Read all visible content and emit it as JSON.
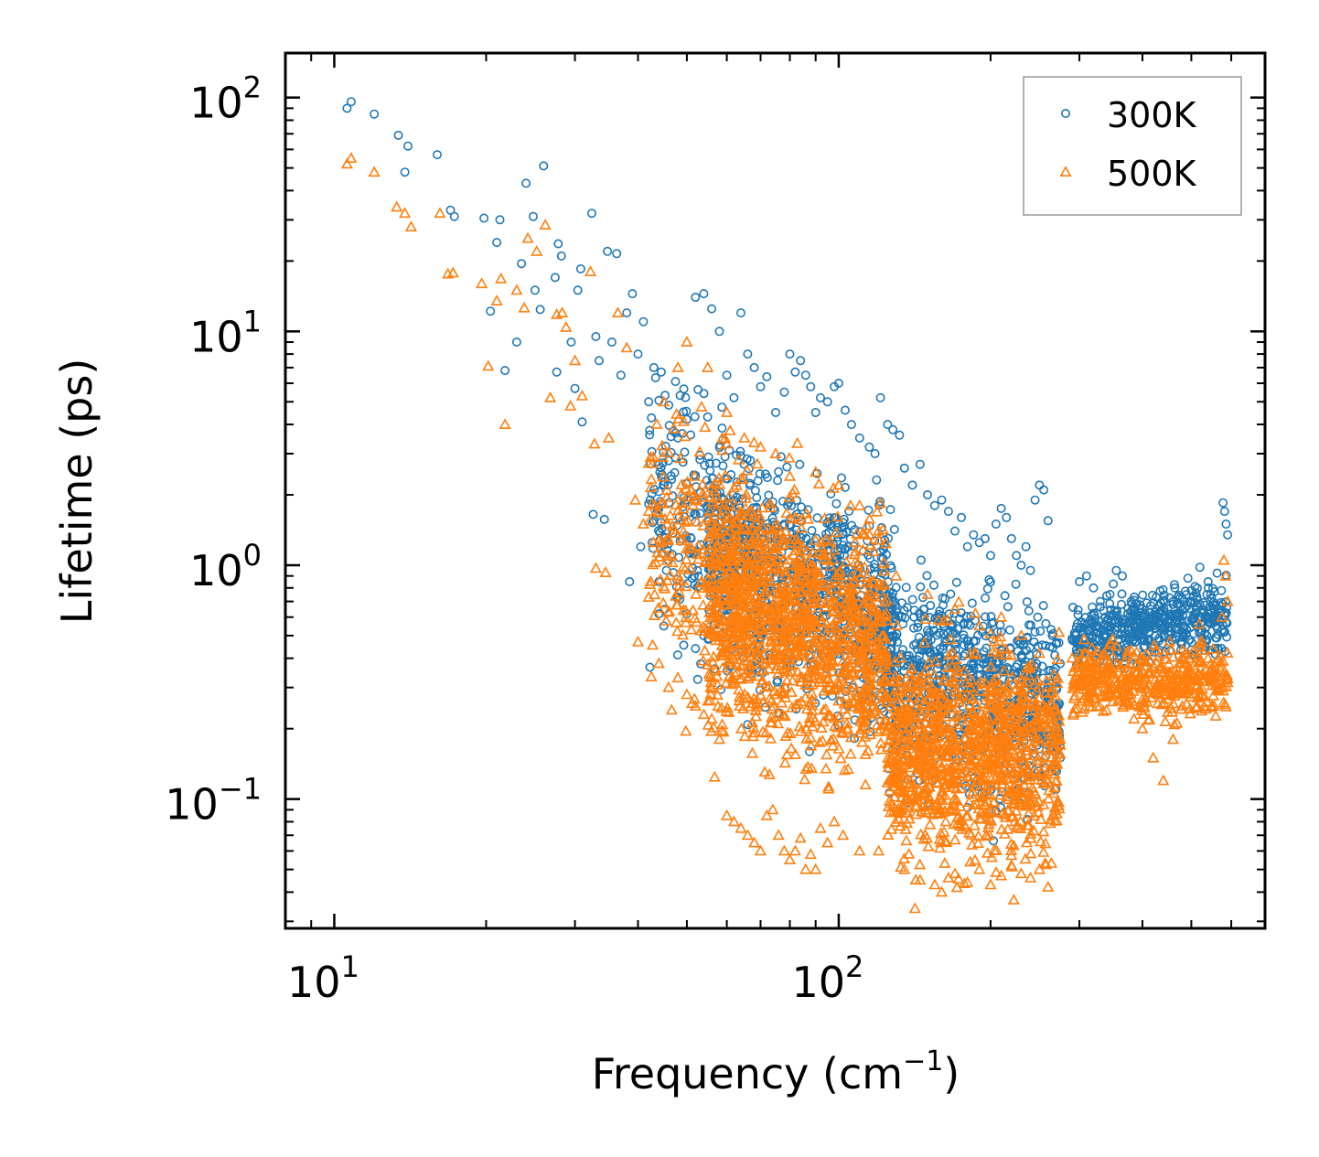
{
  "chart_data": {
    "type": "scatter",
    "xscale": "log",
    "yscale": "log",
    "xlabel_main": "Frequency (cm",
    "xlabel_sup": "−1",
    "xlabel_close": ")",
    "ylabel": "Lifetime (ps)",
    "xlim": [
      8,
      700
    ],
    "ylim": [
      0.028,
      155
    ],
    "x_ticks": [
      {
        "value": 10,
        "base": "10",
        "exp": "1"
      },
      {
        "value": 100,
        "base": "10",
        "exp": "2"
      }
    ],
    "y_ticks": [
      {
        "value": 0.1,
        "base": "10",
        "exp": "−1"
      },
      {
        "value": 1,
        "base": "10",
        "exp": "0"
      },
      {
        "value": 10,
        "base": "10",
        "exp": "1"
      },
      {
        "value": 100,
        "base": "10",
        "exp": "2"
      }
    ],
    "legend_position": "top-right",
    "series": [
      {
        "name": "300K",
        "marker": "circle",
        "color": "#1f77b4",
        "points": [
          [
            10.6,
            90
          ],
          [
            10.8,
            96
          ],
          [
            12,
            85
          ],
          [
            13.4,
            69
          ],
          [
            13.8,
            48
          ],
          [
            14,
            62
          ],
          [
            16,
            57
          ],
          [
            17,
            33
          ],
          [
            17.3,
            31
          ],
          [
            19.8,
            30.5
          ],
          [
            20.4,
            12.2
          ],
          [
            21,
            24
          ],
          [
            21.3,
            30
          ],
          [
            21.8,
            6.8
          ],
          [
            23,
            9
          ],
          [
            23.5,
            19.5
          ],
          [
            24,
            43
          ],
          [
            24.8,
            31
          ],
          [
            25,
            15
          ],
          [
            25.6,
            12.4
          ],
          [
            26,
            51
          ],
          [
            27.4,
            17
          ],
          [
            27.6,
            6.7
          ],
          [
            27.8,
            23.7
          ],
          [
            28.2,
            21
          ],
          [
            29.5,
            9
          ],
          [
            30,
            5.7
          ],
          [
            30.4,
            15
          ],
          [
            30.8,
            18.5
          ],
          [
            31,
            4.1
          ],
          [
            32.4,
            32
          ],
          [
            32.6,
            1.65
          ],
          [
            33,
            9.5
          ],
          [
            34.3,
            1.57
          ],
          [
            34.8,
            22
          ],
          [
            36.3,
            21.5
          ],
          [
            33.5,
            7.5
          ],
          [
            35.5,
            9
          ],
          [
            37,
            6.5
          ],
          [
            38,
            12
          ],
          [
            39,
            14.5
          ],
          [
            40,
            8
          ],
          [
            41,
            11
          ],
          [
            42,
            5
          ],
          [
            43,
            7
          ],
          [
            38.5,
            0.85
          ],
          [
            40.5,
            1.2
          ],
          [
            44,
            0.62
          ],
          [
            45,
            0.55
          ],
          [
            46,
            1.05
          ],
          [
            47,
            0.93
          ],
          [
            48,
            0.73
          ],
          [
            50,
            0.62
          ],
          [
            52,
            0.44
          ],
          [
            54,
            0.5
          ],
          [
            46,
            2.8
          ],
          [
            48,
            3.5
          ],
          [
            50,
            4.2
          ],
          [
            52,
            14
          ],
          [
            54,
            14.5
          ],
          [
            56,
            12.5
          ],
          [
            58,
            10
          ],
          [
            60,
            6.5
          ],
          [
            62,
            5.2
          ],
          [
            64,
            12
          ],
          [
            66,
            8
          ],
          [
            68,
            7
          ],
          [
            70,
            5.8
          ],
          [
            72,
            6.4
          ],
          [
            75,
            4.5
          ],
          [
            78,
            5.5
          ],
          [
            80,
            8
          ],
          [
            82,
            6.7
          ],
          [
            84,
            7.5
          ],
          [
            86,
            6.5
          ],
          [
            88,
            5.8
          ],
          [
            90,
            4.5
          ],
          [
            92,
            5.2
          ],
          [
            95,
            5
          ],
          [
            98,
            5.8
          ],
          [
            100,
            6
          ],
          [
            103,
            4.6
          ],
          [
            106,
            4
          ],
          [
            110,
            3.5
          ],
          [
            115,
            3.2
          ],
          [
            118,
            3
          ],
          [
            121,
            5.2
          ],
          [
            125,
            4
          ],
          [
            128,
            3.8
          ],
          [
            132,
            3.6
          ],
          [
            135,
            2.6
          ],
          [
            140,
            2.2
          ],
          [
            145,
            2.7
          ],
          [
            150,
            2
          ],
          [
            155,
            1.8
          ],
          [
            160,
            1.9
          ],
          [
            165,
            1.7
          ],
          [
            170,
            1.4
          ],
          [
            175,
            1.6
          ],
          [
            180,
            1.2
          ],
          [
            185,
            1.35
          ],
          [
            190,
            1.25
          ],
          [
            195,
            1.3
          ],
          [
            200,
            1.1
          ],
          [
            205,
            1.5
          ],
          [
            210,
            1.75
          ],
          [
            215,
            1.6
          ],
          [
            220,
            1.3
          ],
          [
            225,
            1.1
          ],
          [
            230,
            1
          ],
          [
            235,
            1.2
          ],
          [
            240,
            0.95
          ],
          [
            245,
            1.9
          ],
          [
            250,
            2.2
          ],
          [
            255,
            2.1
          ],
          [
            260,
            1.55
          ],
          [
            265,
            0.5
          ],
          [
            270,
            0.3
          ],
          [
            275,
            0.15
          ],
          [
            300,
            0.85
          ],
          [
            310,
            0.9
          ],
          [
            320,
            0.8
          ],
          [
            330,
            0.7
          ],
          [
            345,
            0.75
          ],
          [
            355,
            0.95
          ],
          [
            365,
            0.9
          ],
          [
            380,
            0.7
          ],
          [
            390,
            0.5
          ],
          [
            405,
            0.4
          ],
          [
            420,
            0.55
          ],
          [
            440,
            0.6
          ],
          [
            460,
            0.68
          ],
          [
            480,
            0.72
          ],
          [
            500,
            0.78
          ],
          [
            520,
            0.98
          ],
          [
            540,
            0.85
          ],
          [
            560,
            0.55
          ],
          [
            578,
            1.85
          ],
          [
            582,
            1.7
          ],
          [
            586,
            1.5
          ],
          [
            590,
            1.35
          ]
        ]
      },
      {
        "name": "500K",
        "marker": "triangle",
        "color": "#ff7f0e",
        "points": [
          [
            10.6,
            52
          ],
          [
            10.8,
            55
          ],
          [
            12,
            48
          ],
          [
            13.3,
            34
          ],
          [
            13.8,
            32
          ],
          [
            14.2,
            28
          ],
          [
            16.2,
            32
          ],
          [
            16.8,
            17.6
          ],
          [
            17.2,
            17.8
          ],
          [
            19.6,
            16
          ],
          [
            20.2,
            7.1
          ],
          [
            21,
            13.5
          ],
          [
            21.4,
            16.8
          ],
          [
            21.8,
            4
          ],
          [
            23,
            15
          ],
          [
            23.8,
            12.6
          ],
          [
            24.2,
            25
          ],
          [
            25.2,
            22
          ],
          [
            26.2,
            28.5
          ],
          [
            26.8,
            5.2
          ],
          [
            27.6,
            11.8
          ],
          [
            28.3,
            12
          ],
          [
            28.8,
            10.4
          ],
          [
            29.4,
            4.8
          ],
          [
            30,
            7.5
          ],
          [
            31,
            5.3
          ],
          [
            32.2,
            18
          ],
          [
            32.8,
            3.3
          ],
          [
            33,
            0.97
          ],
          [
            34.5,
            0.93
          ],
          [
            35,
            3.5
          ],
          [
            36.5,
            12
          ],
          [
            38,
            8.5
          ],
          [
            39.5,
            1.9
          ],
          [
            40,
            0.47
          ],
          [
            41,
            1.5
          ],
          [
            42,
            1.7
          ],
          [
            44,
            0.38
          ],
          [
            46,
            0.3
          ],
          [
            48,
            0.33
          ],
          [
            50,
            0.28
          ],
          [
            52,
            0.25
          ],
          [
            54,
            0.23
          ],
          [
            56,
            0.22
          ],
          [
            58,
            0.18
          ],
          [
            60,
            0.085
          ],
          [
            62,
            0.08
          ],
          [
            64,
            0.075
          ],
          [
            66,
            0.07
          ],
          [
            68,
            0.065
          ],
          [
            70,
            0.06
          ],
          [
            72,
            0.085
          ],
          [
            74,
            0.09
          ],
          [
            76,
            0.07
          ],
          [
            78,
            0.06
          ],
          [
            80,
            0.055
          ],
          [
            82,
            0.06
          ],
          [
            84,
            0.068
          ],
          [
            86,
            0.05
          ],
          [
            88,
            0.058
          ],
          [
            90,
            0.05
          ],
          [
            92,
            0.075
          ],
          [
            95,
            0.065
          ],
          [
            98,
            0.08
          ],
          [
            102,
            0.07
          ],
          [
            110,
            0.06
          ],
          [
            120,
            0.06
          ],
          [
            135,
            0.05
          ],
          [
            145,
            0.045
          ],
          [
            155,
            0.043
          ],
          [
            160,
            0.04
          ],
          [
            165,
            0.046
          ],
          [
            170,
            0.048
          ],
          [
            180,
            0.044
          ],
          [
            190,
            0.05
          ],
          [
            200,
            0.043
          ],
          [
            210,
            0.047
          ],
          [
            220,
            0.052
          ],
          [
            230,
            0.048
          ],
          [
            240,
            0.046
          ],
          [
            250,
            0.05
          ],
          [
            260,
            0.042
          ],
          [
            45,
            5
          ],
          [
            48,
            7
          ],
          [
            50,
            9
          ],
          [
            55,
            7
          ],
          [
            60,
            4.5
          ],
          [
            65,
            3.5
          ],
          [
            70,
            3.2
          ],
          [
            75,
            3
          ],
          [
            80,
            2.4
          ],
          [
            90,
            2.5
          ],
          [
            100,
            2.2
          ],
          [
            110,
            1.8
          ],
          [
            120,
            1.4
          ],
          [
            130,
            0.9
          ],
          [
            150,
            0.75
          ],
          [
            170,
            0.65
          ],
          [
            190,
            0.55
          ],
          [
            210,
            0.6
          ],
          [
            230,
            0.5
          ],
          [
            250,
            0.42
          ],
          [
            265,
            0.3
          ],
          [
            275,
            0.17
          ],
          [
            300,
            0.32
          ],
          [
            310,
            0.28
          ],
          [
            325,
            0.25
          ],
          [
            340,
            0.35
          ],
          [
            355,
            0.45
          ],
          [
            370,
            0.3
          ],
          [
            385,
            0.22
          ],
          [
            400,
            0.2
          ],
          [
            420,
            0.15
          ],
          [
            440,
            0.12
          ],
          [
            460,
            0.18
          ],
          [
            480,
            0.25
          ],
          [
            500,
            0.32
          ],
          [
            520,
            0.45
          ],
          [
            540,
            0.4
          ],
          [
            555,
            0.25
          ],
          [
            575,
            0.6
          ],
          [
            580,
            1.05
          ],
          [
            585,
            0.9
          ],
          [
            590,
            0.7
          ]
        ]
      }
    ],
    "clusters": [
      {
        "series": 0,
        "count": 900,
        "xmin": 55,
        "xmax": 130,
        "center": 0.8,
        "spread": 0.38,
        "trend": -0.9
      },
      {
        "series": 0,
        "count": 800,
        "xmin": 125,
        "xmax": 275,
        "center": 0.3,
        "spread": 0.34,
        "trend": -0.4
      },
      {
        "series": 0,
        "count": 500,
        "xmin": 290,
        "xmax": 590,
        "center": 0.55,
        "spread": 0.12,
        "trend": 0.3
      },
      {
        "series": 0,
        "count": 250,
        "xmin": 42,
        "xmax": 70,
        "center": 1.6,
        "spread": 0.45,
        "trend": -1.2
      },
      {
        "series": 1,
        "count": 1200,
        "xmin": 55,
        "xmax": 125,
        "center": 0.55,
        "spread": 0.42,
        "trend": -0.6
      },
      {
        "series": 1,
        "count": 1100,
        "xmin": 125,
        "xmax": 275,
        "center": 0.16,
        "spread": 0.36,
        "trend": 0
      },
      {
        "series": 1,
        "count": 450,
        "xmin": 290,
        "xmax": 590,
        "center": 0.32,
        "spread": 0.12,
        "trend": 0
      },
      {
        "series": 1,
        "count": 250,
        "xmin": 42,
        "xmax": 70,
        "center": 1.1,
        "spread": 0.5,
        "trend": -1.4
      }
    ]
  }
}
